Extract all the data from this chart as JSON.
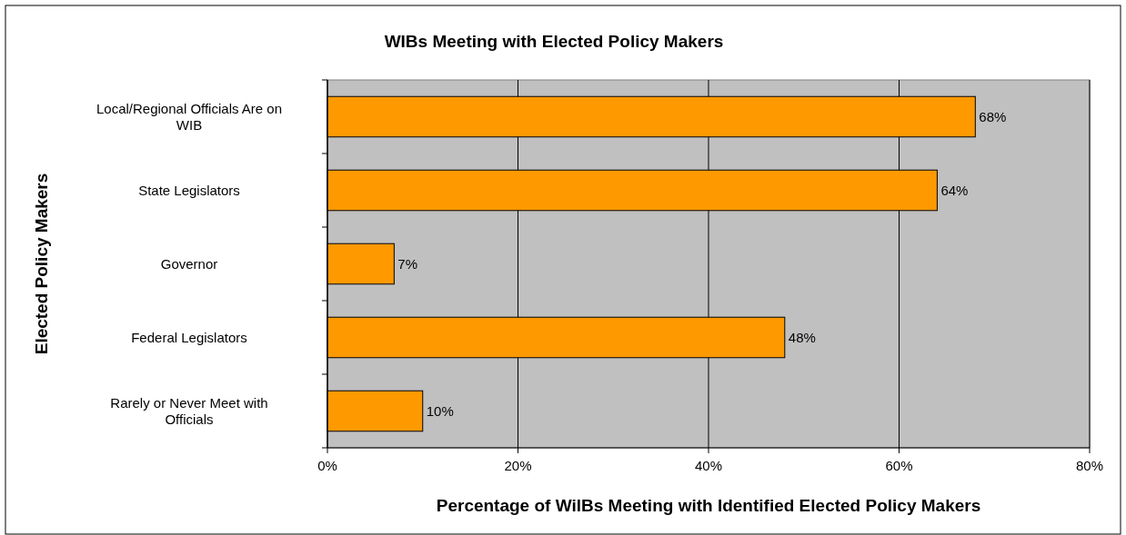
{
  "chart_data": {
    "type": "bar",
    "orientation": "horizontal",
    "title": "WIBs Meeting with Elected Policy Makers",
    "xlabel": "Percentage of WilBs Meeting with Identified Elected Policy Makers",
    "ylabel": "Elected Policy Makers",
    "categories": [
      "Local/Regional Officials Are on WIB",
      "State Legislators",
      "Governor",
      "Federal Legislators",
      "Rarely or Never Meet with Officials"
    ],
    "values": [
      68,
      64,
      7,
      48,
      10
    ],
    "value_labels": [
      "68%",
      "64%",
      "7%",
      "48%",
      "10%"
    ],
    "color": "#ff9900",
    "xlim": [
      0,
      80
    ],
    "xticks": [
      {
        "value": 0,
        "label": "0%"
      },
      {
        "value": 20,
        "label": "20%"
      },
      {
        "value": 40,
        "label": "40%"
      },
      {
        "value": 60,
        "label": "60%"
      },
      {
        "value": 80,
        "label": "80%"
      }
    ],
    "grid": "x"
  }
}
